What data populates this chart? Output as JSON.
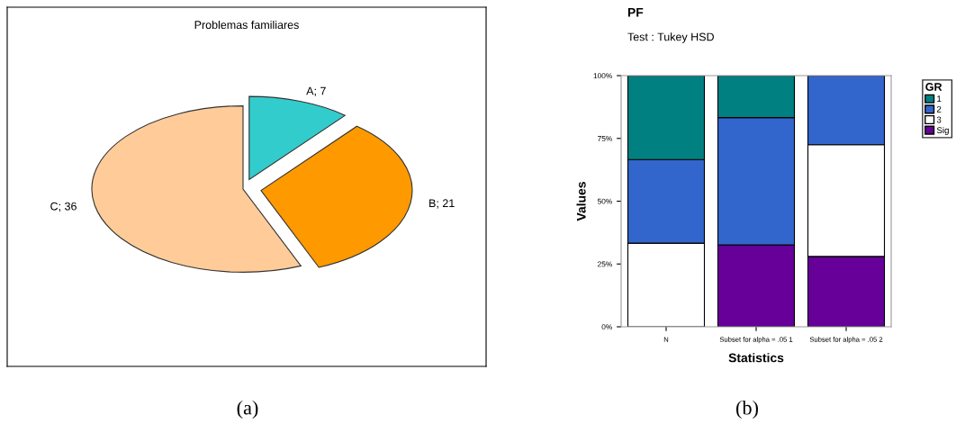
{
  "chart_data": [
    {
      "type": "pie",
      "title": "Problemas familiares",
      "categories": [
        "A; 7",
        "B; 21",
        "C; 36"
      ],
      "values": [
        7,
        21,
        36
      ],
      "colors": [
        "#33cccc",
        "#ff9900",
        "#ffcc99"
      ],
      "annotations": [
        "(a)"
      ]
    },
    {
      "type": "bar",
      "stacked": true,
      "title": "PF",
      "subtitle": "Test : Tukey HSD",
      "xlabel": "Statistics",
      "ylabel": "Values",
      "legend_title": "GR",
      "legend": "right",
      "categories": [
        "N",
        "Subset for alpha = .05 1",
        "Subset for alpha = .05 2"
      ],
      "series": [
        {
          "name": "Sig",
          "color": "#660099",
          "values": [
            null,
            32.6,
            28
          ]
        },
        {
          "name": "3",
          "color": "#ffffff",
          "values": [
            33.3,
            null,
            44.5
          ]
        },
        {
          "name": "2",
          "color": "#3366cc",
          "values": [
            33.3,
            50.7,
            27.5
          ]
        },
        {
          "name": "1",
          "color": "#008080",
          "values": [
            33.4,
            16.7,
            null
          ]
        }
      ],
      "ylim": [
        0,
        100
      ],
      "yticks": [
        {
          "value": 0,
          "label": "0%"
        },
        {
          "value": 25,
          "label": "25%"
        },
        {
          "value": 50,
          "label": "50%"
        },
        {
          "value": 75,
          "label": "75%"
        },
        {
          "value": 100,
          "label": "100%"
        }
      ],
      "grid": false,
      "annotations": [
        "(b)"
      ]
    }
  ]
}
